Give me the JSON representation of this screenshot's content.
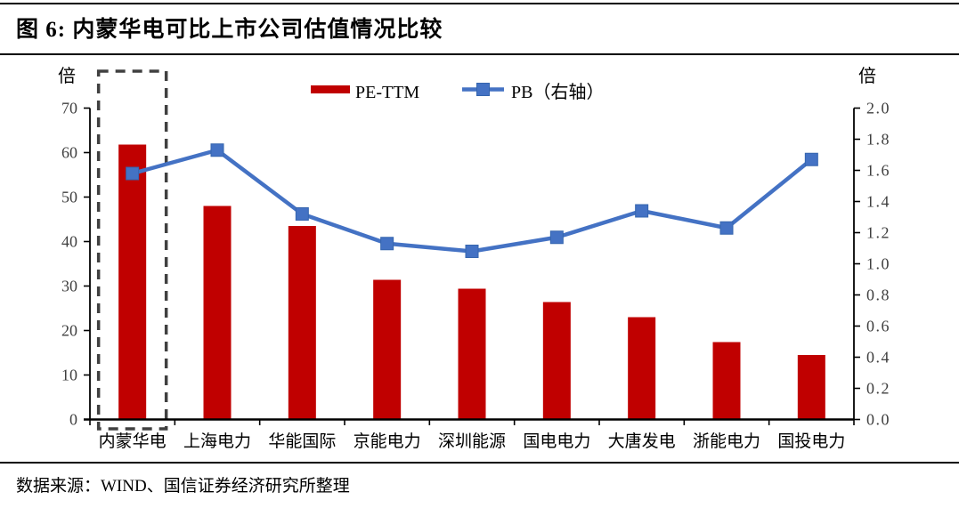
{
  "page": {
    "source": "数据来源：WIND、国信证券经济研究所整理"
  },
  "chart_data": {
    "type": "combo-bar-line",
    "title": "图 6:  内蒙华电可比上市公司估值情况比较",
    "categories": [
      "内蒙华电",
      "上海电力",
      "华能国际",
      "京能电力",
      "深圳能源",
      "国电电力",
      "大唐发电",
      "浙能电力",
      "国投电力"
    ],
    "series": [
      {
        "name": "PE-TTM",
        "type": "bar",
        "axis": "left",
        "color": "#C00000",
        "values": [
          61.8,
          48.0,
          43.5,
          31.4,
          29.4,
          26.4,
          23.0,
          17.4,
          14.5
        ]
      },
      {
        "name": "PB（右轴）",
        "type": "line",
        "axis": "right",
        "color": "#4472C4",
        "marker": "square",
        "values": [
          1.58,
          1.73,
          1.32,
          1.13,
          1.08,
          1.17,
          1.34,
          1.23,
          1.67
        ]
      }
    ],
    "left_axis": {
      "unit": "倍",
      "min": 0,
      "max": 70,
      "tick_labels": [
        "0",
        "10",
        "20",
        "30",
        "40",
        "50",
        "60",
        "70"
      ]
    },
    "right_axis": {
      "unit": "倍",
      "min": 0,
      "max": 2.0,
      "tick_labels": [
        "0.0",
        "0.2",
        "0.4",
        "0.6",
        "0.8",
        "1.0",
        "1.2",
        "1.4",
        "1.6",
        "1.8",
        "2.0"
      ]
    },
    "highlight": {
      "category": "内蒙华电",
      "style": "dashed-box",
      "color": "#404040"
    },
    "legend": [
      "PE-TTM",
      "PB（右轴）"
    ],
    "legend_position": "top-center",
    "grid": false
  }
}
